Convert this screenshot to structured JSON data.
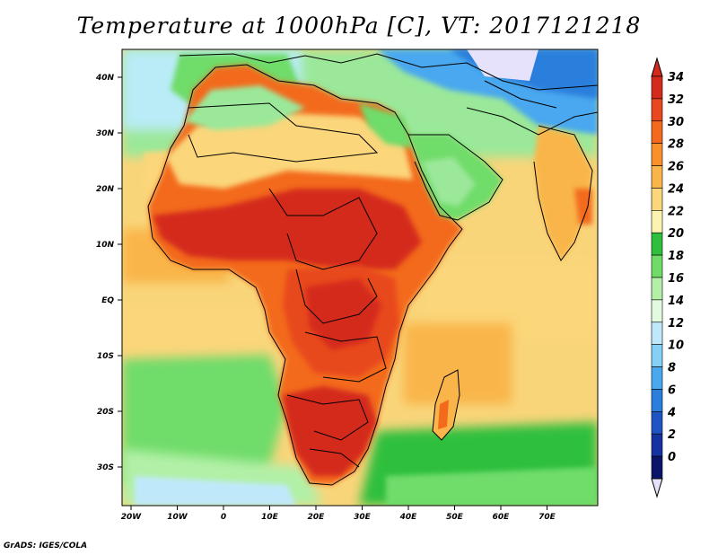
{
  "title": "Temperature at 1000hPa [C], VT: 2017121218",
  "footer": "GrADS: IGES/COLA",
  "map": {
    "region": "Africa",
    "variable": "Temperature at 1000hPa",
    "units": "C",
    "lon_range": [
      -23,
      80
    ],
    "lat_range": [
      -37,
      45
    ],
    "lon_ticks": [
      "20W",
      "10W",
      "0",
      "10E",
      "20E",
      "30E",
      "40E",
      "50E",
      "60E",
      "70E"
    ],
    "lat_ticks": [
      "40N",
      "30N",
      "20N",
      "10N",
      "EQ",
      "10S",
      "20S",
      "30S"
    ],
    "ocean_color": "#f9d57a",
    "land_hot_color": "#e23a1e"
  },
  "colorbar": {
    "labels": [
      "34",
      "32",
      "30",
      "28",
      "26",
      "24",
      "22",
      "20",
      "18",
      "16",
      "14",
      "12",
      "10",
      "8",
      "6",
      "4",
      "2",
      "0"
    ],
    "colors": [
      "#d42a1c",
      "#e8481d",
      "#f36a1c",
      "#f8912b",
      "#f9b54a",
      "#fbd67a",
      "#fdf3b0",
      "#2fbf3c",
      "#6fdc6a",
      "#b2f0a7",
      "#e2fbe0",
      "#bfe9fb",
      "#86d0f7",
      "#4aa8ef",
      "#2a7fdc",
      "#1e55c2",
      "#1632a0",
      "#0a1468"
    ],
    "top_arrow_color": "#d42a1c",
    "bottom_arrow_color": "#e7e2fb"
  }
}
